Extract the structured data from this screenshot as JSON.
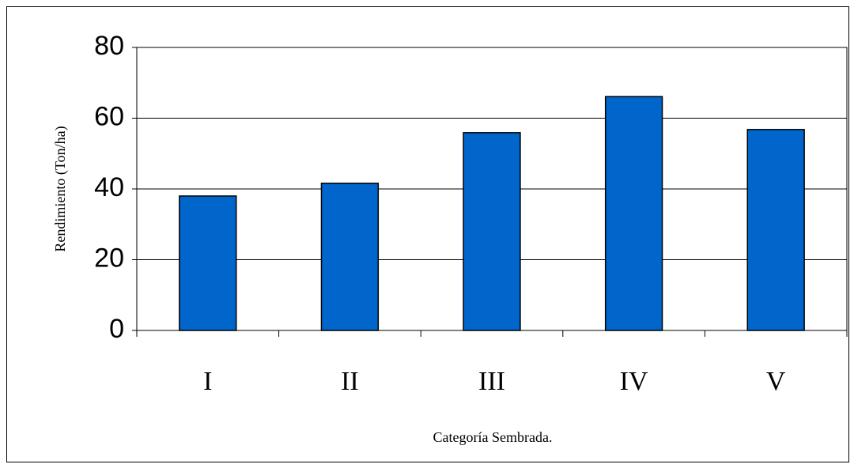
{
  "chart_data": {
    "type": "bar",
    "categories": [
      "I",
      "II",
      "III",
      "IV",
      "V"
    ],
    "values": [
      38,
      41.6,
      55.9,
      66.1,
      56.8
    ],
    "color": "#0066cc",
    "xlabel": "Categoría Sembrada.",
    "ylabel": "Rendimiento (Ton/ha)",
    "ylim": [
      0,
      80
    ],
    "yticks": [
      0,
      20,
      40,
      60,
      80
    ],
    "grid": true
  }
}
